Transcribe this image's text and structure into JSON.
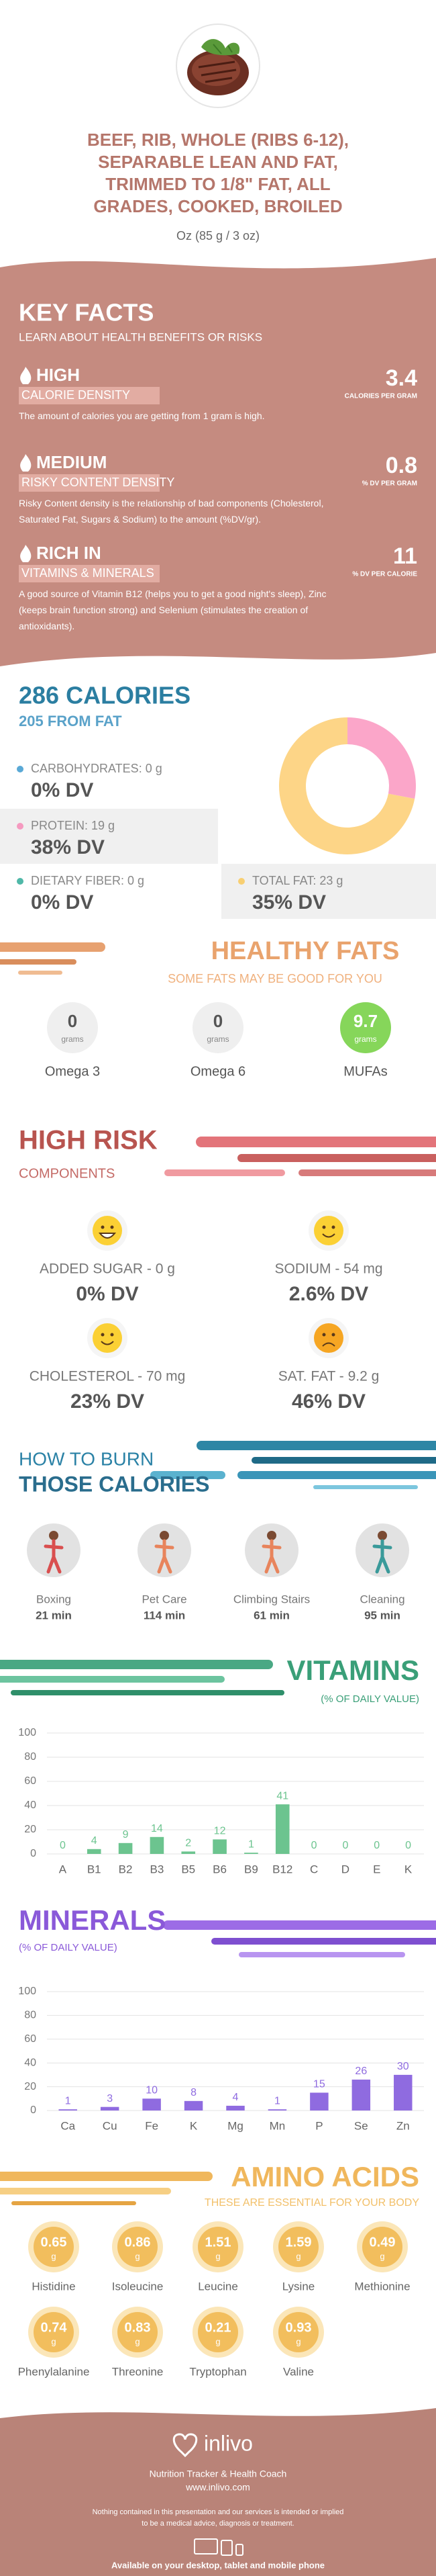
{
  "header": {
    "title_lines": [
      "BEEF, RIB, WHOLE (RIBS 6-12),",
      "SEPARABLE LEAN AND FAT,",
      "TRIMMED TO 1/8\" FAT, ALL",
      "GRADES, COOKED, BROILED"
    ],
    "serving": "Oz (85 g / 3 oz)"
  },
  "key_facts": {
    "title": "KEY FACTS",
    "subtitle": "LEARN ABOUT HEALTH BENEFITS OR RISKS",
    "facts": [
      {
        "level": "HIGH",
        "label": "CALORIE DENSITY",
        "value": 3.4,
        "unit": "CALORIES PER GRAM",
        "text": "The amount of calories you are getting from 1 gram is high."
      },
      {
        "level": "MEDIUM",
        "label": "RISKY CONTENT DENSITY",
        "value": 0.8,
        "unit": "% DV PER GRAM",
        "text": "Risky Content density is the relationship of bad components (Cholesterol, Saturated Fat, Sugars & Sodium) to the amount (%DV/gr)."
      },
      {
        "level": "RICH  IN",
        "label": "VITAMINS & MINERALS",
        "value": 11,
        "unit": "% DV PER CALORIE",
        "text": "A good source of Vitamin B12 (helps you to get a good night's sleep), Zinc (keeps brain function strong) and Selenium (stimulates the creation of antioxidants)."
      }
    ]
  },
  "calories": {
    "title": "286 CALORIES",
    "subtitle": "205 FROM FAT",
    "nutrients": [
      {
        "label": "CARBOHYDRATES: 0 g",
        "dv": "0% DV",
        "color": "#5aa9d6"
      },
      {
        "label": "PROTEIN: 19 g",
        "dv": "38% DV",
        "color": "#f59ac0"
      },
      {
        "label": "DIETARY FIBER: 0 g",
        "dv": "0% DV",
        "color": "#4fb8a8"
      },
      {
        "label": "TOTAL FAT: 23 g",
        "dv": "35% DV",
        "color": "#f8cf72"
      }
    ],
    "donut": [
      {
        "value": 28,
        "color": "#fba6c9"
      },
      {
        "value": 72,
        "color": "#fdd587"
      }
    ]
  },
  "healthy_fats": {
    "title": "HEALTHY FATS",
    "subtitle": "SOME FATS MAY BE GOOD FOR YOU",
    "unit": "grams",
    "items": [
      {
        "name": "Omega 3",
        "value": 0,
        "color": "#efefef"
      },
      {
        "name": "Omega 6",
        "value": 0,
        "color": "#efefef"
      },
      {
        "name": "MUFAs",
        "value": 9.7,
        "color": "#86d65a"
      }
    ]
  },
  "high_risk": {
    "title": "HIGH RISK",
    "subtitle": "COMPONENTS",
    "items": [
      {
        "label": "ADDED SUGAR - 0 g",
        "dv": "0% DV",
        "mood": "grin"
      },
      {
        "label": "SODIUM - 54 mg",
        "dv": "2.6% DV",
        "mood": "smile"
      },
      {
        "label": "CHOLESTEROL - 70 mg",
        "dv": "23% DV",
        "mood": "smile"
      },
      {
        "label": "SAT. FAT - 9.2 g",
        "dv": "46% DV",
        "mood": "sad"
      }
    ]
  },
  "burn": {
    "title_1": "HOW TO BURN",
    "title_2": "THOSE CALORIES",
    "activities": [
      {
        "name": "Boxing",
        "time": "21 min"
      },
      {
        "name": "Pet Care",
        "time": "114 min"
      },
      {
        "name": "Climbing Stairs",
        "time": "61 min"
      },
      {
        "name": "Cleaning",
        "time": "95 min"
      }
    ]
  },
  "chart_data": [
    {
      "type": "bar",
      "title": "VITAMINS",
      "subtitle": "(% OF DAILY VALUE)",
      "color": "#6cc48f",
      "grid": true,
      "categories": [
        "A",
        "B1",
        "B2",
        "B3",
        "B5",
        "B6",
        "B9",
        "B12",
        "C",
        "D",
        "E",
        "K"
      ],
      "values": [
        0,
        4,
        9,
        14,
        2,
        12,
        1,
        41,
        0,
        0,
        0,
        0
      ],
      "ylim": [
        0,
        100
      ],
      "yticks": [
        0,
        20,
        40,
        60,
        80,
        100
      ]
    },
    {
      "type": "bar",
      "title": "MINERALS",
      "subtitle": "(% OF DAILY VALUE)",
      "color": "#8f6be0",
      "grid": true,
      "categories": [
        "Ca",
        "Cu",
        "Fe",
        "K",
        "Mg",
        "Mn",
        "P",
        "Se",
        "Zn"
      ],
      "values": [
        1,
        3,
        10,
        8,
        4,
        1,
        15,
        26,
        30
      ],
      "ylim": [
        0,
        100
      ],
      "yticks": [
        0,
        20,
        40,
        60,
        80,
        100
      ]
    }
  ],
  "amino_acids": {
    "title": "AMINO ACIDS",
    "subtitle": "THESE ARE ESSENTIAL FOR YOUR BODY",
    "unit": "g",
    "items": [
      {
        "name": "Histidine",
        "value": 0.65
      },
      {
        "name": "Isoleucine",
        "value": 0.86
      },
      {
        "name": "Leucine",
        "value": 1.51
      },
      {
        "name": "Lysine",
        "value": 1.59
      },
      {
        "name": "Methionine",
        "value": 0.49
      },
      {
        "name": "Phenylalanine",
        "value": 0.74
      },
      {
        "name": "Threonine",
        "value": 0.83
      },
      {
        "name": "Tryptophan",
        "value": 0.21
      },
      {
        "name": "Valine",
        "value": 0.93
      }
    ]
  },
  "footer": {
    "brand": "inlivo",
    "tagline": "Nutrition Tracker & Health Coach",
    "url": "www.inlivo.com",
    "disclaimer": [
      "Nothing contained in this presentation and our services is intended or implied",
      "to be a medical advice, diagnosis or treatment."
    ],
    "availability": "Available on your desktop, tablet and mobile phone"
  }
}
